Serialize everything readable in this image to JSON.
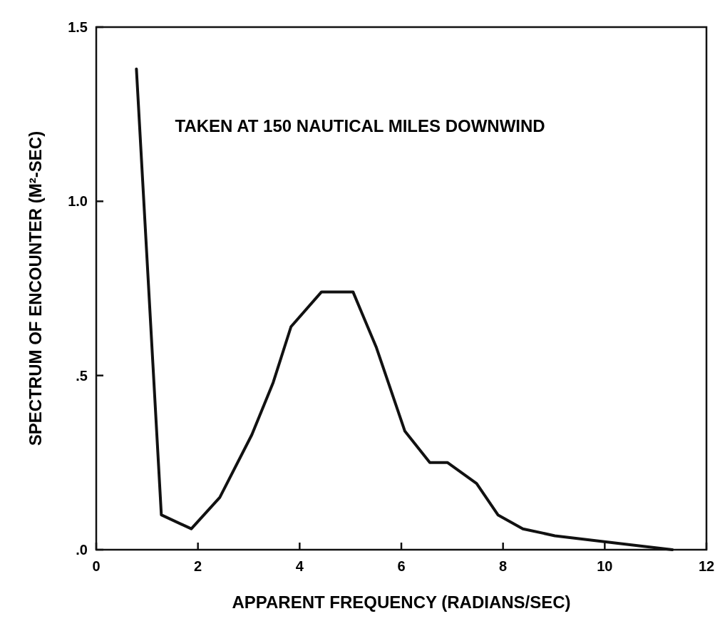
{
  "chart_data": {
    "type": "line",
    "xlabel": "APPARENT FREQUENCY (RADIANS/SEC)",
    "ylabel": "SPECTRUM OF ENCOUNTER (M²-SEC)",
    "annotations": [
      "TAKEN AT 150 NAUTICAL MILES DOWNWIND"
    ],
    "x": [
      0.79,
      1.28,
      1.87,
      2.43,
      3.06,
      3.48,
      3.83,
      4.43,
      5.05,
      5.51,
      6.07,
      6.56,
      6.91,
      7.48,
      7.9,
      8.39,
      9.02,
      9.58,
      11.33
    ],
    "series": [
      {
        "color": "#111111",
        "values": [
          1.38,
          0.1,
          0.06,
          0.15,
          0.33,
          0.48,
          0.64,
          0.74,
          0.74,
          0.58,
          0.34,
          0.25,
          0.25,
          0.19,
          0.1,
          0.06,
          0.04,
          0.03,
          0.0
        ]
      }
    ],
    "xlim": [
      0,
      12
    ],
    "xticks": [
      0,
      2,
      4,
      6,
      8,
      10,
      12
    ],
    "ylim": [
      0,
      1.5
    ],
    "yticks": [
      {
        "value": 0,
        "label": ".0"
      },
      {
        "value": 0.5,
        "label": ".5"
      },
      {
        "value": 1,
        "label": "1.0"
      },
      {
        "value": 1.5,
        "label": "1.5"
      }
    ],
    "grid": false,
    "line_style": "solid"
  }
}
